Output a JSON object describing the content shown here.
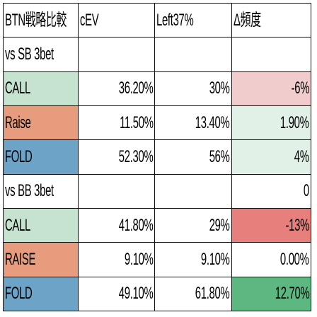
{
  "colors": {
    "call": "#c5e3cf",
    "raise": "#e89c7e",
    "fold": "#6ea3c8",
    "delta_neg_light": "#f1cccc",
    "delta_pos_light": "#e2f1e7",
    "delta_neg_strong": "#e7807d",
    "delta_pos_strong": "#5cb880"
  },
  "header": {
    "label": "BTN戦略比較",
    "cev": "cEV",
    "left": "Left37%",
    "delta": "Δ頻度"
  },
  "sections": [
    {
      "title": "vs SB 3bet",
      "title_delta": "",
      "rows": [
        {
          "action": "CALL",
          "cev": "36.20%",
          "left": "30%",
          "delta": "-6%"
        },
        {
          "action": "Raise",
          "cev": "11.50%",
          "left": "13.40%",
          "delta": "1.90%"
        },
        {
          "action": "FOLD",
          "cev": "52.30%",
          "left": "56%",
          "delta": "4%"
        }
      ]
    },
    {
      "title": "vs BB 3bet",
      "title_delta": "0",
      "rows": [
        {
          "action": "CALL",
          "cev": "41.80%",
          "left": "29%",
          "delta": "-13%"
        },
        {
          "action": "RAISE",
          "cev": "9.10%",
          "left": "9.10%",
          "delta": "0.00%"
        },
        {
          "action": "FOLD",
          "cev": "49.10%",
          "left": "61.80%",
          "delta": "12.70%"
        }
      ]
    }
  ]
}
